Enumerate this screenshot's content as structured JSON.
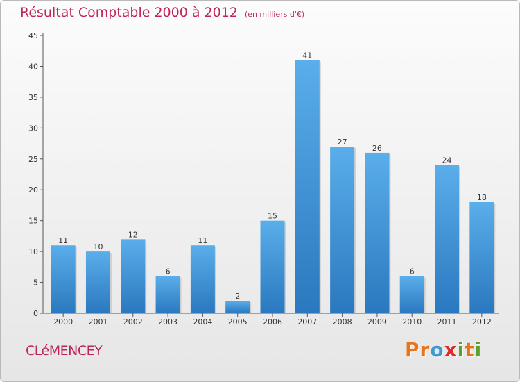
{
  "title": "Résultat Comptable 2000 à 2012",
  "subtitle": "(en milliers d'€)",
  "city": "CLéMENCEY",
  "brand": {
    "letters": [
      "P",
      "r",
      "o",
      "x",
      "i",
      "t",
      "i"
    ],
    "colors": [
      "#e8731a",
      "#e8731a",
      "#3c9ad6",
      "#e02a22",
      "#5aa02c",
      "#e8731a",
      "#5aa02c"
    ]
  },
  "chart_data": {
    "type": "bar",
    "title": "Résultat Comptable 2000 à 2012",
    "xlabel": "",
    "ylabel": "",
    "categories": [
      "2000",
      "2001",
      "2002",
      "2003",
      "2004",
      "2005",
      "2006",
      "2007",
      "2008",
      "2009",
      "2010",
      "2011",
      "2012"
    ],
    "values": [
      11,
      10,
      12,
      6,
      11,
      2,
      15,
      41,
      27,
      26,
      6,
      24,
      18
    ],
    "ylim": [
      0,
      45
    ],
    "yticks": [
      0,
      5,
      10,
      15,
      20,
      25,
      30,
      35,
      40,
      45
    ],
    "grid": false,
    "bar_color": "#3d95d9"
  }
}
